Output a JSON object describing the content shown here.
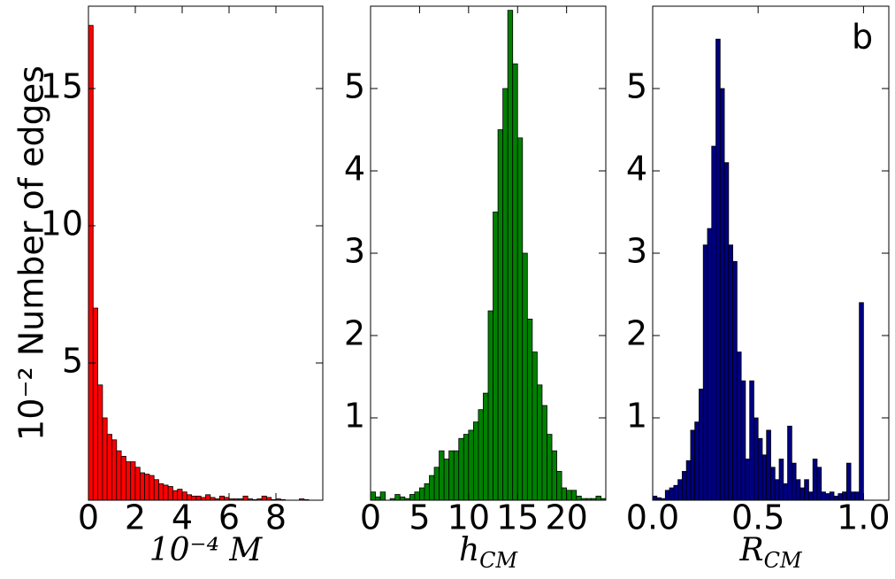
{
  "chart_data": [
    {
      "type": "histogram",
      "color": "#ff0000",
      "ylabel": "10⁻² Number of edges",
      "xlabel": "10⁻⁴ M",
      "bins": [
        0,
        0.2,
        0.4,
        0.6,
        0.8,
        1,
        1.2,
        1.4,
        1.6,
        1.8,
        2,
        2.2,
        2.4,
        2.6,
        2.8,
        3,
        3.2,
        3.4,
        3.6,
        3.8,
        4,
        4.2,
        4.4,
        4.6,
        4.8,
        5,
        5.2,
        5.4,
        5.6,
        5.8,
        6,
        6.2,
        6.4,
        6.6,
        6.8,
        7,
        7.2,
        7.4,
        7.6,
        7.8,
        8,
        8.2,
        8.4,
        8.6,
        8.8,
        9,
        9.2,
        9.4,
        9.6,
        9.8,
        10
      ],
      "values": [
        17.3,
        7.0,
        4.2,
        3.0,
        2.4,
        2.2,
        1.8,
        1.6,
        1.4,
        1.4,
        1.2,
        1.0,
        0.95,
        0.9,
        0.75,
        0.6,
        0.55,
        0.5,
        0.35,
        0.4,
        0.3,
        0.2,
        0.15,
        0.15,
        0.1,
        0.2,
        0.1,
        0.05,
        0.15,
        0.1,
        0.05,
        0.05,
        0.05,
        0.15,
        0.05,
        0.02,
        0.05,
        0.15,
        0.1,
        0.02,
        0.05,
        0.02,
        0,
        0,
        0,
        0.05,
        0.02,
        0,
        0,
        0
      ],
      "xlim": [
        0,
        10
      ],
      "ylim": [
        0,
        18
      ],
      "xticks": [
        0,
        2,
        4,
        6,
        8
      ],
      "yticks": [
        5,
        10,
        15
      ]
    },
    {
      "type": "histogram",
      "color": "#008000",
      "xlabel": "h",
      "xlabel_sub": "CM",
      "bins": [
        0,
        0.5,
        1,
        1.5,
        2,
        2.5,
        3,
        3.5,
        4,
        4.5,
        5,
        5.5,
        6,
        6.5,
        7,
        7.5,
        8,
        8.5,
        9,
        9.5,
        10,
        10.5,
        11,
        11.5,
        12,
        12.5,
        13,
        13.5,
        14,
        14.5,
        15,
        15.5,
        16,
        16.5,
        17,
        17.5,
        18,
        18.5,
        19,
        19.5,
        20,
        20.5,
        21,
        21.5,
        22,
        22.5,
        23,
        23.5,
        24
      ],
      "values": [
        0.1,
        0.04,
        0.1,
        0,
        0.02,
        0.07,
        0.04,
        0.02,
        0.07,
        0.1,
        0.15,
        0.2,
        0.3,
        0.4,
        0.6,
        0.5,
        0.6,
        0.6,
        0.75,
        0.8,
        0.85,
        0.95,
        1.1,
        1.3,
        2.3,
        3.5,
        4.5,
        5.0,
        5.95,
        5.3,
        4.4,
        3.0,
        2.2,
        1.8,
        1.4,
        1.15,
        0.8,
        0.6,
        0.35,
        0.15,
        0.12,
        0.12,
        0.05,
        0.02,
        0.02,
        0.02,
        0.05,
        0.02
      ],
      "xlim": [
        0,
        24
      ],
      "ylim": [
        0,
        6
      ],
      "xticks": [
        0,
        5,
        10,
        15,
        20
      ],
      "yticks": [
        1,
        2,
        3,
        4,
        5
      ]
    },
    {
      "type": "histogram",
      "color": "#000080",
      "xlabel": "R",
      "xlabel_sub": "CM",
      "annotation": "b",
      "bins": [
        0,
        0.02,
        0.04,
        0.06,
        0.08,
        0.1,
        0.12,
        0.14,
        0.16,
        0.18,
        0.2,
        0.22,
        0.24,
        0.26,
        0.28,
        0.3,
        0.32,
        0.34,
        0.36,
        0.38,
        0.4,
        0.42,
        0.44,
        0.46,
        0.48,
        0.5,
        0.52,
        0.54,
        0.56,
        0.58,
        0.6,
        0.62,
        0.64,
        0.66,
        0.68,
        0.7,
        0.72,
        0.74,
        0.76,
        0.78,
        0.8,
        0.82,
        0.84,
        0.86,
        0.88,
        0.9,
        0.92,
        0.94,
        0.96,
        0.98,
        1
      ],
      "values": [
        0.05,
        0.03,
        0.02,
        0.12,
        0.15,
        0.18,
        0.25,
        0.35,
        0.48,
        0.85,
        0.95,
        1.35,
        3.1,
        3.3,
        4.3,
        5.6,
        5.0,
        4.1,
        3.1,
        2.9,
        1.8,
        1.45,
        0.5,
        1.45,
        1.0,
        0.75,
        0.55,
        0.85,
        0.4,
        0.25,
        0.5,
        0.2,
        0.9,
        0.45,
        0.25,
        0.15,
        0.25,
        0.1,
        0.5,
        0.4,
        0.1,
        0.08,
        0.1,
        0.05,
        0.08,
        0.1,
        0.45,
        0.1,
        0.1,
        2.4
      ],
      "xlim": [
        0,
        1.12
      ],
      "ylim": [
        0,
        6
      ],
      "xticks": [
        {
          "value": 0,
          "label": "0.0"
        },
        {
          "value": 0.5,
          "label": "0.5"
        },
        {
          "value": 1,
          "label": "1.0"
        }
      ],
      "yticks": [
        1,
        2,
        3,
        4,
        5
      ]
    }
  ]
}
